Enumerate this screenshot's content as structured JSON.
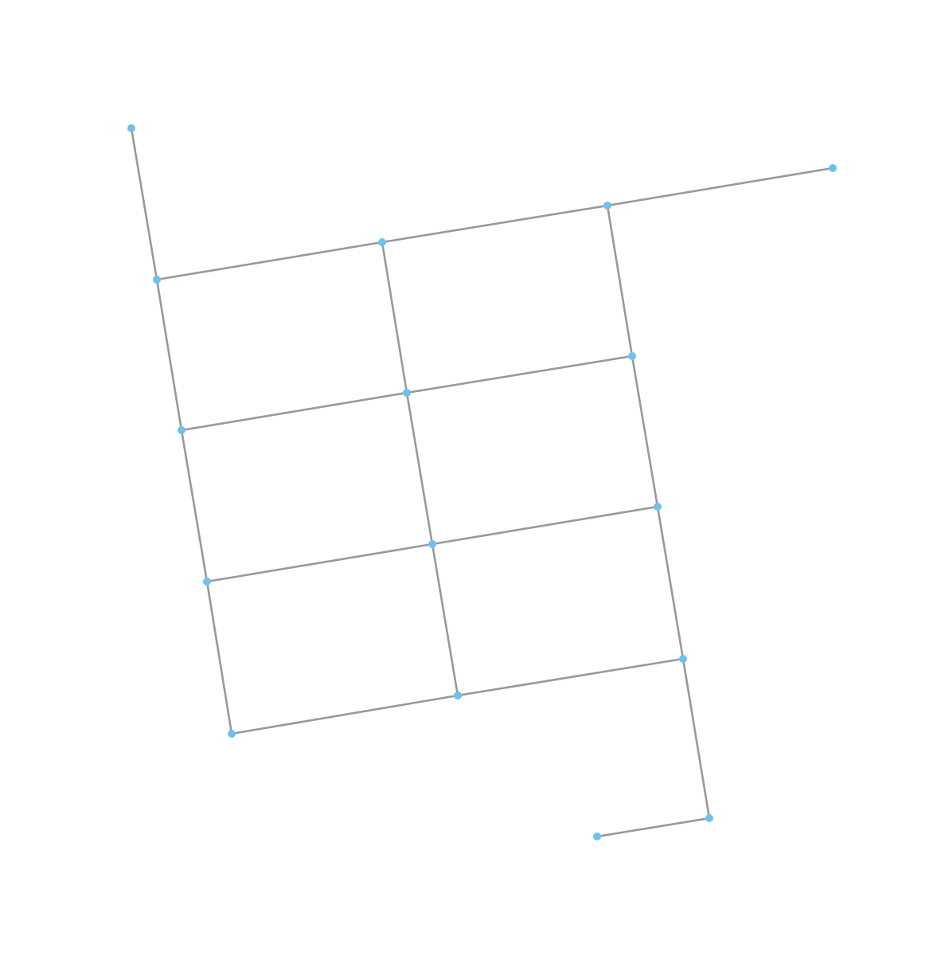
{
  "diagram": {
    "type": "graph",
    "style": {
      "edge_color": "#999999",
      "node_color": "#6ec1ea",
      "background": "#ffffff"
    },
    "nodes": [
      {
        "id": "n0"
      },
      {
        "id": "n1"
      },
      {
        "id": "n2"
      },
      {
        "id": "n3"
      },
      {
        "id": "n4"
      },
      {
        "id": "n5"
      },
      {
        "id": "n6"
      },
      {
        "id": "n7"
      },
      {
        "id": "n8"
      },
      {
        "id": "n9"
      },
      {
        "id": "n10"
      },
      {
        "id": "n11"
      },
      {
        "id": "n12"
      },
      {
        "id": "n13"
      },
      {
        "id": "n14"
      },
      {
        "id": "n15"
      },
      {
        "id": "n16"
      }
    ],
    "edges": [
      [
        "n0",
        "n1"
      ],
      [
        "n1",
        "n2"
      ],
      [
        "n2",
        "n3"
      ],
      [
        "n3",
        "n4"
      ],
      [
        "n1",
        "n5"
      ],
      [
        "n5",
        "n6"
      ],
      [
        "n6",
        "n7"
      ],
      [
        "n7",
        "n8"
      ],
      [
        "n5",
        "n9"
      ],
      [
        "n9",
        "n10"
      ],
      [
        "n10",
        "n11"
      ],
      [
        "n11",
        "n12"
      ],
      [
        "n2",
        "n9"
      ],
      [
        "n9",
        "n13"
      ],
      [
        "n3",
        "n10"
      ],
      [
        "n10",
        "n14"
      ],
      [
        "n4",
        "n11"
      ],
      [
        "n11",
        "n15"
      ],
      [
        "n15",
        "n16"
      ]
    ]
  }
}
